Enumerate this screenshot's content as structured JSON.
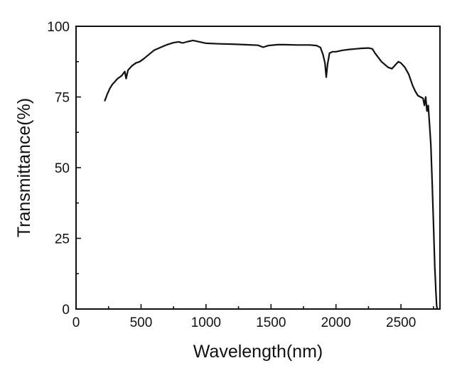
{
  "chart_data": {
    "type": "line",
    "title": "",
    "xlabel": "Wavelength(nm)",
    "ylabel": "Transmittance(%)",
    "xlim": [
      0,
      2800
    ],
    "ylim": [
      0,
      100
    ],
    "xticks": [
      0,
      500,
      1000,
      1500,
      2000,
      2500
    ],
    "xtick_labels": [
      "0",
      "500",
      "1000",
      "1500",
      "2000",
      "2500"
    ],
    "yticks": [
      0,
      25,
      50,
      75,
      100
    ],
    "ytick_labels": [
      "0",
      "25",
      "50",
      "75",
      "100"
    ],
    "grid": false,
    "legend": "none",
    "series": [
      {
        "color": "#111111",
        "x": [
          220,
          240,
          260,
          280,
          300,
          320,
          350,
          375,
          385,
          400,
          430,
          460,
          490,
          520,
          560,
          600,
          650,
          700,
          750,
          790,
          820,
          860,
          900,
          950,
          1000,
          1100,
          1200,
          1300,
          1400,
          1440,
          1480,
          1550,
          1600,
          1700,
          1800,
          1850,
          1880,
          1900,
          1915,
          1925,
          1935,
          1950,
          1975,
          2000,
          2050,
          2100,
          2150,
          2200,
          2250,
          2280,
          2300,
          2350,
          2400,
          2430,
          2460,
          2480,
          2500,
          2530,
          2560,
          2590,
          2610,
          2630,
          2650,
          2670,
          2680,
          2690,
          2700,
          2710,
          2720,
          2730,
          2740,
          2750,
          2760,
          2770,
          2775,
          2780
        ],
        "y": [
          73.5,
          76,
          78,
          79.5,
          80.5,
          81.5,
          82.5,
          84,
          81.5,
          84.5,
          86,
          87,
          87.5,
          88.5,
          90,
          91.5,
          92.5,
          93.5,
          94.2,
          94.5,
          94.1,
          94.6,
          95,
          94.5,
          94,
          93.8,
          93.7,
          93.5,
          93.3,
          92.6,
          93.2,
          93.5,
          93.5,
          93.4,
          93.4,
          93.2,
          92.5,
          90,
          87,
          82,
          86.5,
          90.5,
          91,
          91,
          91.5,
          91.8,
          92,
          92.2,
          92.3,
          92,
          90.5,
          87.5,
          85.5,
          85,
          86.5,
          87.5,
          87,
          85.5,
          83,
          79,
          77,
          75.5,
          75,
          74.5,
          72,
          75,
          70,
          72,
          65,
          58,
          45,
          30,
          15,
          5,
          1,
          0
        ]
      }
    ]
  }
}
